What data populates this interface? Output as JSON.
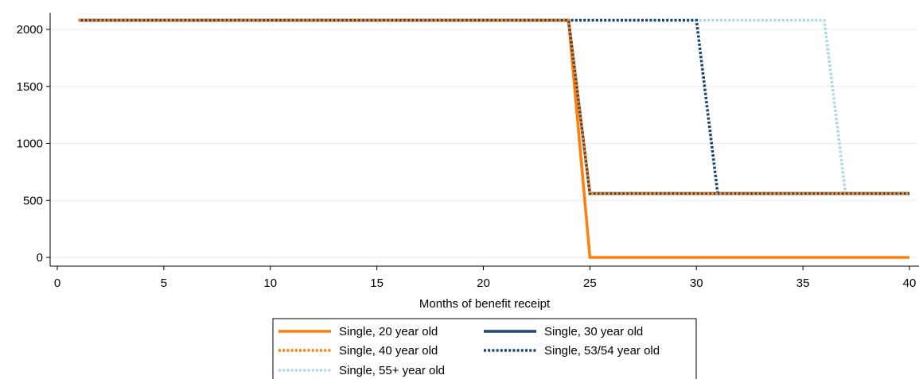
{
  "chart_data": {
    "type": "line",
    "title": "",
    "xlabel": "Months of benefit receipt",
    "ylabel": "",
    "xlim": [
      0,
      40
    ],
    "ylim": [
      0,
      2080
    ],
    "x_ticks": [
      "0",
      "5",
      "10",
      "15",
      "20",
      "25",
      "30",
      "35",
      "40"
    ],
    "y_ticks": [
      "0",
      "500",
      "1000",
      "1500",
      "2000"
    ],
    "grid": "horizontal",
    "legend_position": "bottom",
    "series": [
      {
        "name": "Single, 20 year old",
        "color": "#ff7f0e",
        "style": "solid",
        "x": [
          1,
          24,
          25,
          40
        ],
        "y": [
          2080,
          2080,
          0,
          0
        ]
      },
      {
        "name": "Single, 30 year old",
        "color": "#1a476f",
        "style": "solid",
        "x": [
          1,
          24,
          25,
          40
        ],
        "y": [
          2080,
          2080,
          560,
          560
        ]
      },
      {
        "name": "Single, 40 year old",
        "color": "#ff7f0e",
        "style": "dotted",
        "x": [
          1,
          24,
          25,
          40
        ],
        "y": [
          2080,
          2080,
          560,
          560
        ]
      },
      {
        "name": "Single, 53/54 year old",
        "color": "#1a476f",
        "style": "dotted",
        "x": [
          1,
          30,
          31,
          40
        ],
        "y": [
          2080,
          2080,
          560,
          560
        ]
      },
      {
        "name": "Single, 55+ year old",
        "color": "#add8e6",
        "style": "dotted",
        "x": [
          1,
          36,
          37,
          40
        ],
        "y": [
          2080,
          2080,
          560,
          560
        ]
      }
    ],
    "legend_order": [
      "Single, 20 year old",
      "Single, 30 year old",
      "Single, 40 year old",
      "Single, 53/54 year old",
      "Single, 55+ year old"
    ]
  }
}
